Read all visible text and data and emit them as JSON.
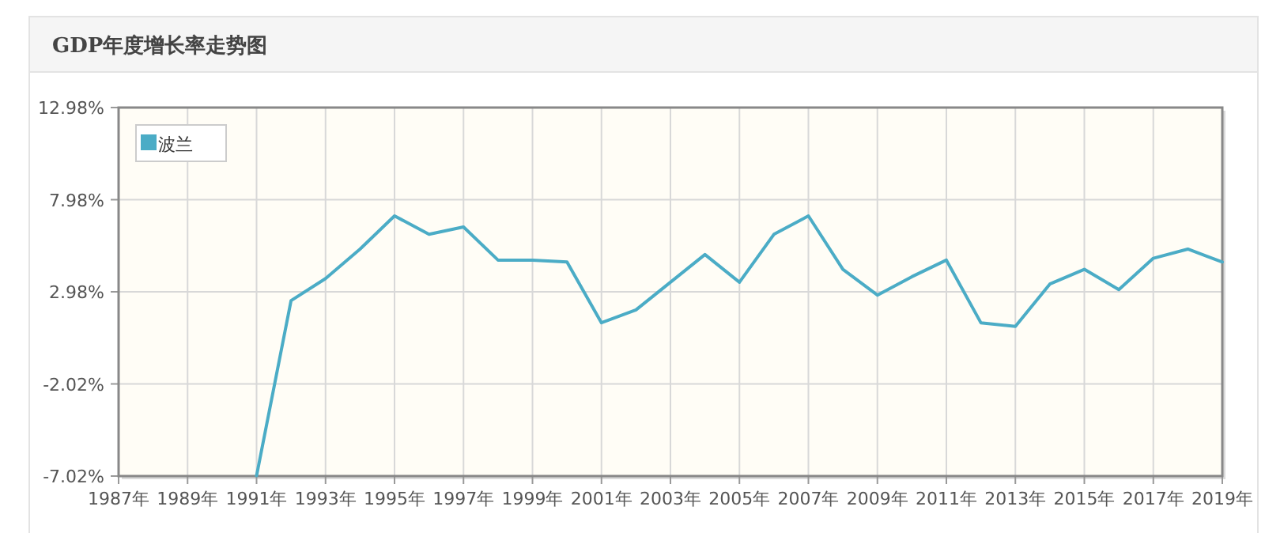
{
  "chart_data": {
    "type": "line",
    "title": "GDP年度增长率走势图",
    "x": [
      1991,
      1992,
      1993,
      1994,
      1995,
      1996,
      1997,
      1998,
      1999,
      2000,
      2001,
      2002,
      2003,
      2004,
      2005,
      2006,
      2007,
      2008,
      2009,
      2010,
      2011,
      2012,
      2013,
      2014,
      2015,
      2016,
      2017,
      2018,
      2019
    ],
    "series": [
      {
        "name": "波兰",
        "color": "#4bacc6",
        "values": [
          -7.0,
          2.5,
          3.7,
          5.3,
          7.1,
          6.1,
          6.5,
          4.7,
          4.7,
          4.6,
          1.3,
          2.0,
          3.5,
          5.0,
          3.5,
          6.1,
          7.1,
          4.2,
          2.8,
          3.8,
          4.7,
          1.3,
          1.1,
          3.4,
          4.2,
          3.1,
          4.8,
          5.3,
          4.6
        ]
      }
    ],
    "xlim": [
      1987,
      2019
    ],
    "xticks": [
      {
        "value": 1987,
        "label": "1987年"
      },
      {
        "value": 1989,
        "label": "1989年"
      },
      {
        "value": 1991,
        "label": "1991年"
      },
      {
        "value": 1993,
        "label": "1993年"
      },
      {
        "value": 1995,
        "label": "1995年"
      },
      {
        "value": 1997,
        "label": "1997年"
      },
      {
        "value": 1999,
        "label": "1999年"
      },
      {
        "value": 2001,
        "label": "2001年"
      },
      {
        "value": 2003,
        "label": "2003年"
      },
      {
        "value": 2005,
        "label": "2005年"
      },
      {
        "value": 2007,
        "label": "2007年"
      },
      {
        "value": 2009,
        "label": "2009年"
      },
      {
        "value": 2011,
        "label": "2011年"
      },
      {
        "value": 2013,
        "label": "2013年"
      },
      {
        "value": 2015,
        "label": "2015年"
      },
      {
        "value": 2017,
        "label": "2017年"
      },
      {
        "value": 2019,
        "label": "2019年"
      }
    ],
    "ylim": [
      -7.02,
      12.98
    ],
    "yticks": [
      {
        "value": -7.02,
        "label": "-7.02%"
      },
      {
        "value": -2.02,
        "label": "-2.02%"
      },
      {
        "value": 2.98,
        "label": "2.98%"
      },
      {
        "value": 7.98,
        "label": "7.98%"
      },
      {
        "value": 12.98,
        "label": "12.98%"
      }
    ],
    "grid": true,
    "legend": "top left"
  }
}
